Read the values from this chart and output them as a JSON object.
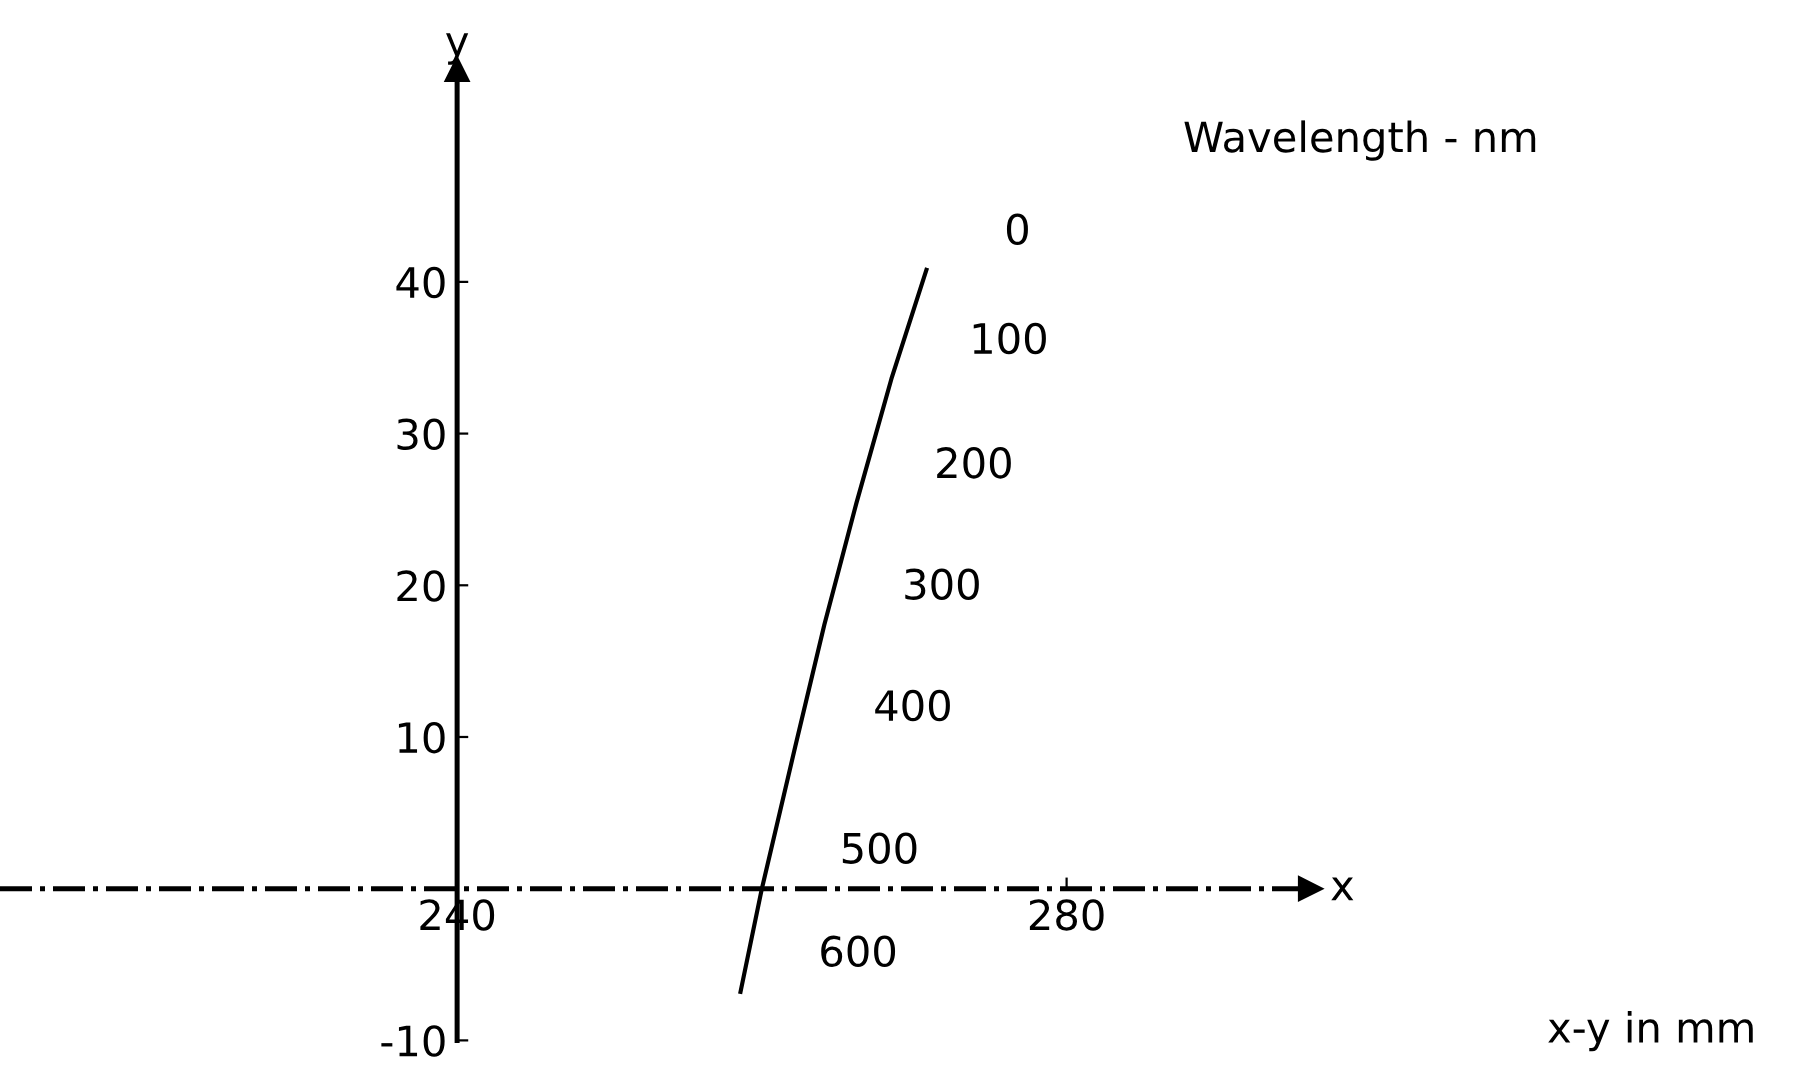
{
  "chart_data": {
    "type": "line",
    "xlabel": "x",
    "ylabel": "y",
    "x": [
      258.6,
      260.0,
      262.2,
      264.1,
      266.2,
      268.5,
      270.8
    ],
    "series": [
      {
        "color": "#000000",
        "values": [
          -6.8,
          0,
          9.4,
          17.4,
          25.4,
          33.6,
          40.8
        ]
      }
    ],
    "xlim": [
      210,
      296
    ],
    "ylim": [
      -10,
      54
    ],
    "xticks": [
      240,
      280
    ],
    "yticks": [
      -10,
      10,
      20,
      30,
      40
    ],
    "grid": false,
    "marker": "none",
    "line_style": "solid",
    "ref_lines": [
      {
        "axis": "y",
        "value": 0,
        "color": "#000000",
        "line_style": "dashdot"
      }
    ],
    "annotations": [
      {
        "text": "600",
        "x": 258.6,
        "y": -6.8
      },
      {
        "text": "500",
        "x": 260.0,
        "y": 0
      },
      {
        "text": "400",
        "x": 262.2,
        "y": 9.4
      },
      {
        "text": "300",
        "x": 264.1,
        "y": 17.4
      },
      {
        "text": "200",
        "x": 266.2,
        "y": 25.4
      },
      {
        "text": "100",
        "x": 268.5,
        "y": 33.6
      },
      {
        "text": "0",
        "x": 270.8,
        "y": 40.8
      },
      "Wavelength - nm",
      "x-y in mm"
    ]
  }
}
